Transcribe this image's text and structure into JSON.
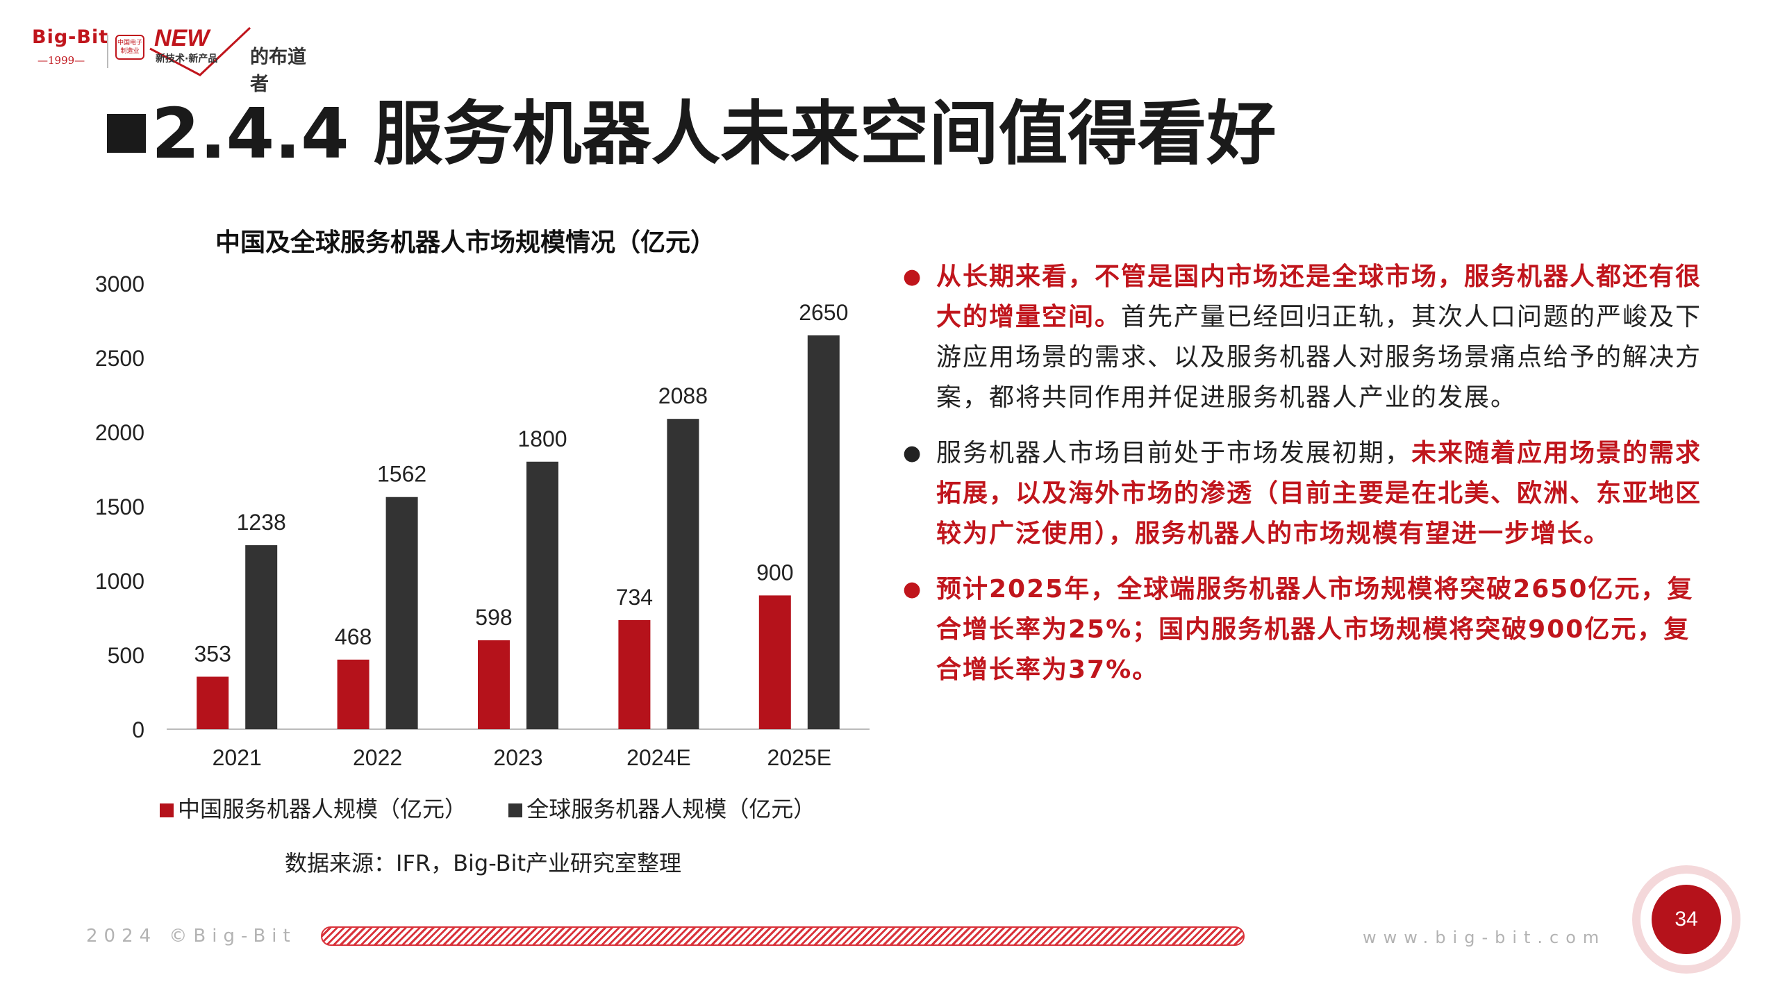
{
  "logo": {
    "brand": "Big-Bit",
    "year": "—1999—",
    "seal_line1": "中国电子",
    "seal_line2": "制造业",
    "new": "NEW",
    "new_sub": "新技术·新产品",
    "tagline": "的布道者"
  },
  "title": "2.4.4 服务机器人未来空间值得看好",
  "chart_data": {
    "type": "bar",
    "title": "中国及全球服务机器人市场规模情况（亿元）",
    "categories": [
      "2021",
      "2022",
      "2023",
      "2024E",
      "2025E"
    ],
    "series": [
      {
        "name": "中国服务机器人规模（亿元）",
        "values": [
          353,
          468,
          598,
          734,
          900
        ],
        "color": "#b5121b"
      },
      {
        "name": "全球服务机器人规模（亿元）",
        "values": [
          1238,
          1562,
          1800,
          2088,
          2650
        ],
        "color": "#333333"
      }
    ],
    "y_ticks": [
      "0",
      "500",
      "1000",
      "1500",
      "2000",
      "2500",
      "3000"
    ],
    "ylim": [
      0,
      3000
    ],
    "grid": false,
    "legend": "bottom",
    "source": "数据来源：IFR，Big-Bit产业研究室整理"
  },
  "bullets": [
    {
      "marker": "●",
      "marker_color": "#c0151c",
      "segments": [
        {
          "text": "从长期来看，不管是国内市场还是全球市场，服务机器人都还有很大的增量空间。",
          "style": "red"
        },
        {
          "text": "首先产量已经回归正轨，其次人口问题的严峻及下游应用场景的需求、以及服务机器人对服务场景痛点给予的解决方案，都将共同作用并促进服务机器人产业的发展。",
          "style": "blk"
        }
      ]
    },
    {
      "marker": "●",
      "marker_color": "#222222",
      "segments": [
        {
          "text": "服务机器人市场目前处于市场发展初期，",
          "style": "blk"
        },
        {
          "text": "未来随着应用场景的需求拓展，以及海外市场的渗透（目前主要是在北美、欧洲、东亚地区较为广泛使用），服务机器人的市场规模有望进一步增长。",
          "style": "red"
        }
      ]
    },
    {
      "marker": "●",
      "marker_color": "#c0151c",
      "segments": [
        {
          "text": "预计2025年，全球端服务机器人市场规模将突破2650亿元，复合增长率为25%；国内服务机器人市场规模将突破900亿元，复合增长率为37%。",
          "style": "red"
        }
      ]
    }
  ],
  "footer": {
    "left": "2024 ©Big-Bit",
    "right": "www.big-bit.com",
    "page": "34"
  }
}
